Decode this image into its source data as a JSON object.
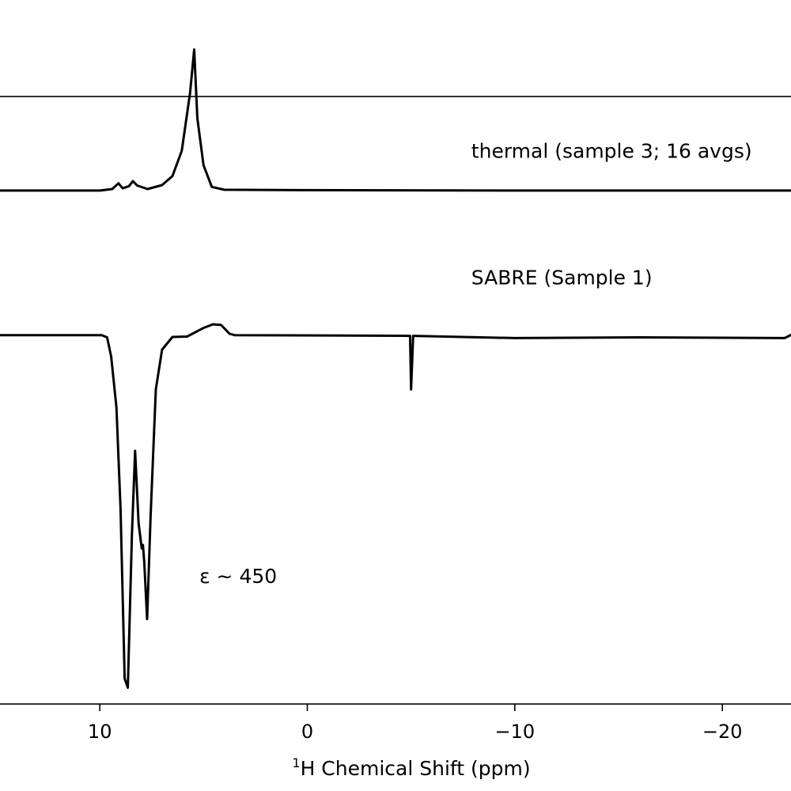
{
  "chart_data": {
    "type": "line",
    "title": "",
    "xlabel_prefix": "1",
    "xlabel": "H Chemical Shift (ppm)",
    "ylabel": "",
    "x_inverted": true,
    "xlim": [
      15.0,
      -23.5
    ],
    "ylim": [
      -1.02,
      0.66
    ],
    "x_ticks": [
      {
        "value": 10,
        "label": "10"
      },
      {
        "value": 0,
        "label": "0"
      },
      {
        "value": -10,
        "label": "−10"
      },
      {
        "value": -20,
        "label": "−20"
      }
    ],
    "series": [
      {
        "name": "thermal (sample 3; 16 avgs)",
        "offset": 0.4,
        "points": [
          [
            15.0,
            0.0
          ],
          [
            10.0,
            0.0
          ],
          [
            9.4,
            0.004
          ],
          [
            9.1,
            0.02
          ],
          [
            8.9,
            0.006
          ],
          [
            8.6,
            0.012
          ],
          [
            8.4,
            0.026
          ],
          [
            8.2,
            0.014
          ],
          [
            7.7,
            0.004
          ],
          [
            7.0,
            0.015
          ],
          [
            6.5,
            0.04
          ],
          [
            6.05,
            0.11
          ],
          [
            5.65,
            0.27
          ],
          [
            5.45,
            0.39
          ],
          [
            5.3,
            0.2
          ],
          [
            5.0,
            0.07
          ],
          [
            4.6,
            0.01
          ],
          [
            4.0,
            0.002
          ],
          [
            0.0,
            0.001
          ],
          [
            -10.0,
            0.0
          ],
          [
            -20.0,
            0.0
          ],
          [
            -23.5,
            0.0
          ]
        ]
      },
      {
        "name": "SABRE (Sample 1)",
        "offset": 0.0,
        "points": [
          [
            15.0,
            0.0
          ],
          [
            9.9,
            0.0
          ],
          [
            9.65,
            -0.006
          ],
          [
            9.45,
            -0.06
          ],
          [
            9.2,
            -0.2
          ],
          [
            9.0,
            -0.48
          ],
          [
            8.8,
            -0.95
          ],
          [
            8.65,
            -0.975
          ],
          [
            8.45,
            -0.55
          ],
          [
            8.3,
            -0.32
          ],
          [
            8.13,
            -0.52
          ],
          [
            7.98,
            -0.59
          ],
          [
            7.92,
            -0.58
          ],
          [
            7.86,
            -0.625
          ],
          [
            7.72,
            -0.785
          ],
          [
            7.55,
            -0.5
          ],
          [
            7.3,
            -0.15
          ],
          [
            7.0,
            -0.04
          ],
          [
            6.5,
            -0.005
          ],
          [
            5.8,
            -0.004
          ],
          [
            5.0,
            0.02
          ],
          [
            4.55,
            0.03
          ],
          [
            4.15,
            0.028
          ],
          [
            3.75,
            0.004
          ],
          [
            3.5,
            0.0
          ],
          [
            -4.95,
            -0.002
          ],
          [
            -5.0,
            -0.15
          ],
          [
            -5.1,
            -0.002
          ],
          [
            -10.0,
            -0.008
          ],
          [
            -16.0,
            -0.006
          ],
          [
            -23.0,
            -0.008
          ],
          [
            -23.5,
            0.006
          ]
        ]
      }
    ],
    "annotations": [
      {
        "text": "thermal (sample 3; 16 avgs)",
        "x": -7.9,
        "y": 0.49
      },
      {
        "text": "SABRE (Sample 1)",
        "x": -7.9,
        "y": 0.14
      },
      {
        "text": "ε ~ 450",
        "x": 5.2,
        "y": -0.685
      }
    ]
  }
}
